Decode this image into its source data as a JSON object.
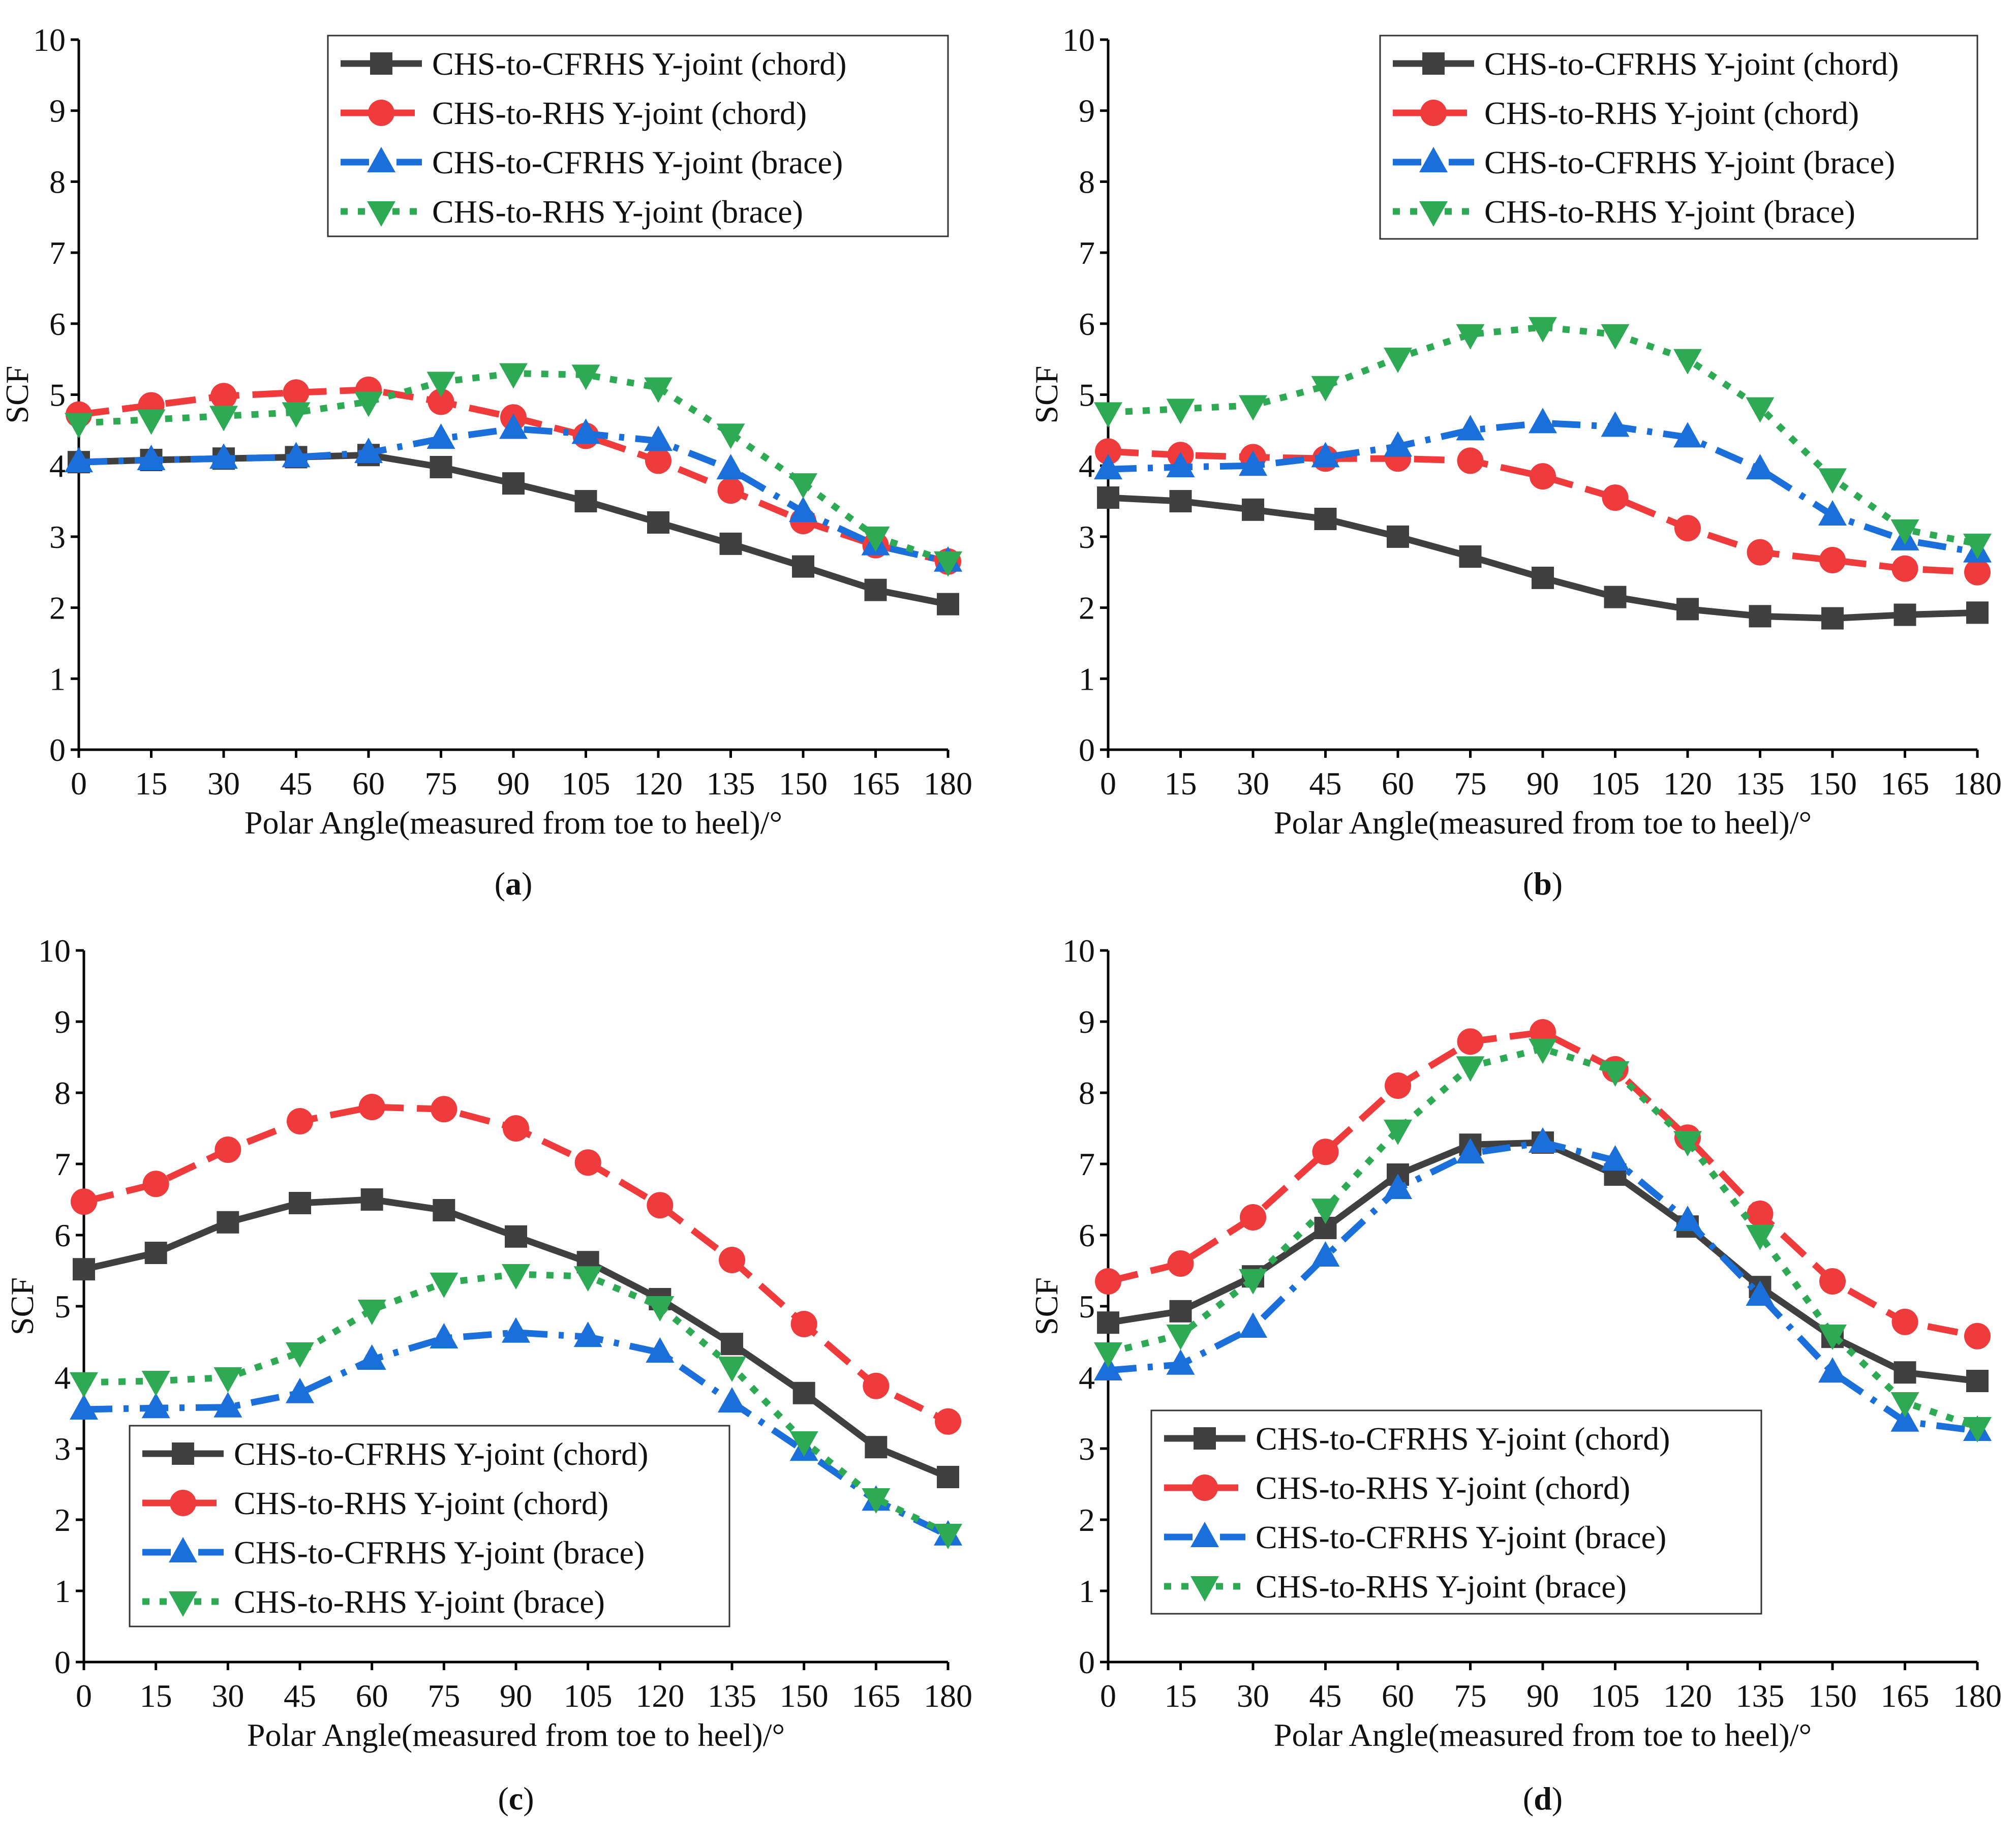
{
  "chart_data": [
    {
      "type": "line",
      "panel_label": "a",
      "legend_position": "top-right",
      "xlabel": "Polar Angle(measured from toe to heel)/°",
      "ylabel": "SCF",
      "xlim": [
        0,
        180
      ],
      "ylim": [
        0,
        10
      ],
      "x_ticks": [
        "0",
        "15",
        "30",
        "45",
        "60",
        "75",
        "90",
        "105",
        "120",
        "135",
        "150",
        "165",
        "180"
      ],
      "y_ticks": [
        "0",
        "1",
        "2",
        "3",
        "4",
        "5",
        "6",
        "7",
        "8",
        "9",
        "10"
      ],
      "x": [
        0,
        15,
        30,
        45,
        60,
        75,
        90,
        105,
        120,
        135,
        150,
        165,
        180
      ],
      "series": [
        {
          "name": "CHS-to-CFRHS Y-joint (chord)",
          "color": "#404040",
          "marker": "square",
          "dash": "solid",
          "values": [
            4.05,
            4.08,
            4.1,
            4.12,
            4.15,
            3.98,
            3.75,
            3.5,
            3.2,
            2.9,
            2.58,
            2.25,
            2.05
          ]
        },
        {
          "name": "CHS-to-RHS Y-joint (chord)",
          "color": "#ef3b3b",
          "marker": "circle",
          "dash": "dash",
          "values": [
            4.72,
            4.85,
            4.98,
            5.03,
            5.07,
            4.9,
            4.68,
            4.42,
            4.07,
            3.65,
            3.22,
            2.88,
            2.65
          ]
        },
        {
          "name": "CHS-to-CFRHS Y-joint (brace)",
          "color": "#1a6fdb",
          "marker": "triangle-up",
          "dash": "dashdot",
          "values": [
            4.05,
            4.08,
            4.1,
            4.12,
            4.18,
            4.38,
            4.52,
            4.45,
            4.35,
            3.95,
            3.35,
            2.88,
            2.65
          ]
        },
        {
          "name": "CHS-to-RHS Y-joint (brace)",
          "color": "#2eaa55",
          "marker": "triangle-down",
          "dash": "dot",
          "values": [
            4.6,
            4.65,
            4.7,
            4.75,
            4.9,
            5.18,
            5.3,
            5.28,
            5.1,
            4.45,
            3.75,
            3.0,
            2.65
          ]
        }
      ]
    },
    {
      "type": "line",
      "panel_label": "b",
      "legend_position": "top-right",
      "xlabel": "Polar Angle(measured from toe to heel)/°",
      "ylabel": "SCF",
      "xlim": [
        0,
        180
      ],
      "ylim": [
        0,
        10
      ],
      "x_ticks": [
        "0",
        "15",
        "30",
        "45",
        "60",
        "75",
        "90",
        "105",
        "120",
        "135",
        "150",
        "165",
        "180"
      ],
      "y_ticks": [
        "0",
        "1",
        "2",
        "3",
        "4",
        "5",
        "6",
        "7",
        "8",
        "9",
        "10"
      ],
      "x": [
        0,
        15,
        30,
        45,
        60,
        75,
        90,
        105,
        120,
        135,
        150,
        165,
        180
      ],
      "series": [
        {
          "name": "CHS-to-CFRHS Y-joint (chord)",
          "color": "#404040",
          "marker": "square",
          "dash": "solid",
          "values": [
            3.55,
            3.5,
            3.38,
            3.25,
            3.0,
            2.72,
            2.42,
            2.15,
            1.98,
            1.88,
            1.85,
            1.9,
            1.93
          ]
        },
        {
          "name": "CHS-to-RHS Y-joint (chord)",
          "color": "#ef3b3b",
          "marker": "circle",
          "dash": "dash",
          "values": [
            4.2,
            4.15,
            4.12,
            4.1,
            4.1,
            4.07,
            3.85,
            3.55,
            3.12,
            2.78,
            2.67,
            2.55,
            2.5
          ]
        },
        {
          "name": "CHS-to-CFRHS Y-joint (brace)",
          "color": "#1a6fdb",
          "marker": "triangle-up",
          "dash": "dashdot",
          "values": [
            3.95,
            3.98,
            4.0,
            4.12,
            4.27,
            4.5,
            4.6,
            4.55,
            4.4,
            3.95,
            3.3,
            2.95,
            2.78
          ]
        },
        {
          "name": "CHS-to-RHS Y-joint (brace)",
          "color": "#2eaa55",
          "marker": "triangle-down",
          "dash": "dot",
          "values": [
            4.75,
            4.8,
            4.85,
            5.12,
            5.52,
            5.85,
            5.95,
            5.85,
            5.5,
            4.82,
            3.82,
            3.1,
            2.9
          ]
        }
      ]
    },
    {
      "type": "line",
      "panel_label": "c",
      "legend_position": "bottom-left",
      "xlabel": "Polar Angle(measured from toe to heel)/°",
      "ylabel": "SCF",
      "xlim": [
        0,
        180
      ],
      "ylim": [
        0,
        10
      ],
      "x_ticks": [
        "0",
        "15",
        "30",
        "45",
        "60",
        "75",
        "90",
        "105",
        "120",
        "135",
        "150",
        "165",
        "180"
      ],
      "y_ticks": [
        "0",
        "1",
        "2",
        "3",
        "4",
        "5",
        "6",
        "7",
        "8",
        "9",
        "10"
      ],
      "x": [
        0,
        15,
        30,
        45,
        60,
        75,
        90,
        105,
        120,
        135,
        150,
        165,
        180
      ],
      "series": [
        {
          "name": "CHS-to-CFRHS Y-joint (chord)",
          "color": "#404040",
          "marker": "square",
          "dash": "solid",
          "values": [
            5.52,
            5.75,
            6.18,
            6.45,
            6.5,
            6.35,
            5.98,
            5.62,
            5.1,
            4.47,
            3.78,
            3.02,
            2.6
          ]
        },
        {
          "name": "CHS-to-RHS Y-joint (chord)",
          "color": "#ef3b3b",
          "marker": "circle",
          "dash": "dash",
          "values": [
            6.47,
            6.72,
            7.2,
            7.6,
            7.8,
            7.77,
            7.5,
            7.02,
            6.42,
            5.65,
            4.75,
            3.88,
            3.38
          ]
        },
        {
          "name": "CHS-to-CFRHS Y-joint (brace)",
          "color": "#1a6fdb",
          "marker": "triangle-up",
          "dash": "dashdot",
          "values": [
            3.55,
            3.57,
            3.58,
            3.78,
            4.25,
            4.55,
            4.63,
            4.57,
            4.35,
            3.65,
            2.97,
            2.27,
            1.78
          ]
        },
        {
          "name": "CHS-to-RHS Y-joint (brace)",
          "color": "#2eaa55",
          "marker": "triangle-down",
          "dash": "dot",
          "values": [
            3.93,
            3.95,
            4.0,
            4.35,
            4.95,
            5.33,
            5.45,
            5.42,
            5.0,
            4.15,
            3.1,
            2.3,
            1.8
          ]
        }
      ]
    },
    {
      "type": "line",
      "panel_label": "d",
      "legend_position": "bottom-left",
      "xlabel": "Polar Angle(measured from toe to heel)/°",
      "ylabel": "SCF",
      "xlim": [
        0,
        180
      ],
      "ylim": [
        0,
        10
      ],
      "x_ticks": [
        "0",
        "15",
        "30",
        "45",
        "60",
        "75",
        "90",
        "105",
        "120",
        "135",
        "150",
        "165",
        "180"
      ],
      "y_ticks": [
        "0",
        "1",
        "2",
        "3",
        "4",
        "5",
        "6",
        "7",
        "8",
        "9",
        "10"
      ],
      "x": [
        0,
        15,
        30,
        45,
        60,
        75,
        90,
        105,
        120,
        135,
        150,
        165,
        180
      ],
      "series": [
        {
          "name": "CHS-to-CFRHS Y-joint (chord)",
          "color": "#404040",
          "marker": "square",
          "dash": "solid",
          "values": [
            4.77,
            4.93,
            5.42,
            6.1,
            6.85,
            7.27,
            7.3,
            6.85,
            6.12,
            5.27,
            4.57,
            4.07,
            3.95
          ]
        },
        {
          "name": "CHS-to-RHS Y-joint (chord)",
          "color": "#ef3b3b",
          "marker": "circle",
          "dash": "dash",
          "values": [
            5.35,
            5.6,
            6.25,
            7.17,
            8.1,
            8.72,
            8.85,
            8.33,
            7.37,
            6.3,
            5.35,
            4.78,
            4.58
          ]
        },
        {
          "name": "CHS-to-CFRHS Y-joint (brace)",
          "color": "#1a6fdb",
          "marker": "triangle-up",
          "dash": "dashdot",
          "values": [
            4.1,
            4.18,
            4.7,
            5.7,
            6.65,
            7.15,
            7.3,
            7.05,
            6.2,
            5.15,
            4.07,
            3.38,
            3.25
          ]
        },
        {
          "name": "CHS-to-RHS Y-joint (brace)",
          "color": "#2eaa55",
          "marker": "triangle-down",
          "dash": "dot",
          "values": [
            4.35,
            4.6,
            5.38,
            6.37,
            7.48,
            8.37,
            8.62,
            8.3,
            7.32,
            6.0,
            4.6,
            3.65,
            3.3
          ]
        }
      ]
    }
  ]
}
